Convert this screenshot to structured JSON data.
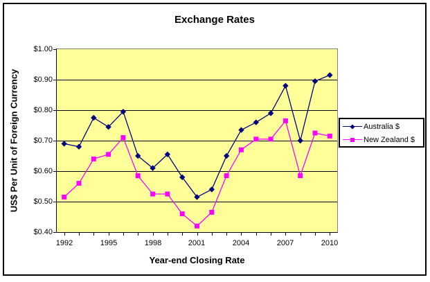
{
  "chart_data": {
    "type": "line",
    "title": "Exchange Rates",
    "xlabel": "Year-end Closing Rate",
    "ylabel": "US$ Per Unit of Foreign Currency",
    "x": [
      1992,
      1993,
      1994,
      1995,
      1996,
      1997,
      1998,
      1999,
      2000,
      2001,
      2002,
      2003,
      2004,
      2005,
      2006,
      2007,
      2008,
      2009,
      2010
    ],
    "x_tick_labels": [
      "1992",
      "1995",
      "1998",
      "2001",
      "2004",
      "2007",
      "2010"
    ],
    "y_tick_labels": [
      "$1.00",
      "$0.90",
      "$0.80",
      "$0.70",
      "$0.60",
      "$0.50",
      "$0.40"
    ],
    "ylim": [
      0.4,
      1.0
    ],
    "y_tick_step": 0.1,
    "grid": "horizontal",
    "legend_position": "right",
    "plot_bg": "#FFFF99",
    "series": [
      {
        "name": "Australia $",
        "color": "#000080",
        "marker": "diamond",
        "values": [
          0.69,
          0.68,
          0.775,
          0.745,
          0.795,
          0.65,
          0.61,
          0.655,
          0.58,
          0.515,
          0.54,
          0.65,
          0.735,
          0.76,
          0.79,
          0.88,
          0.7,
          0.895,
          0.915
        ]
      },
      {
        "name": "New Zealand $",
        "color": "#FF00FF",
        "marker": "square",
        "values": [
          0.515,
          0.56,
          0.64,
          0.655,
          0.71,
          0.585,
          0.525,
          0.525,
          0.46,
          0.42,
          0.465,
          0.585,
          0.67,
          0.705,
          0.705,
          0.765,
          0.585,
          0.725,
          0.715
        ]
      }
    ]
  }
}
